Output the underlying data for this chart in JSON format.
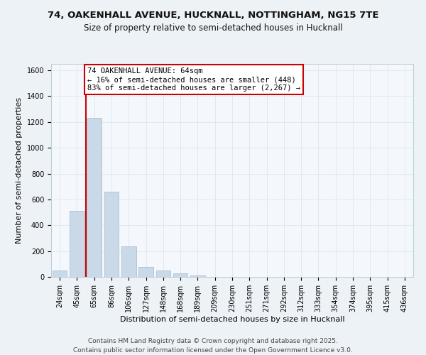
{
  "title_line1": "74, OAKENHALL AVENUE, HUCKNALL, NOTTINGHAM, NG15 7TE",
  "title_line2": "Size of property relative to semi-detached houses in Hucknall",
  "xlabel": "Distribution of semi-detached houses by size in Hucknall",
  "ylabel": "Number of semi-detached properties",
  "categories": [
    "24sqm",
    "45sqm",
    "65sqm",
    "86sqm",
    "106sqm",
    "127sqm",
    "148sqm",
    "168sqm",
    "189sqm",
    "209sqm",
    "230sqm",
    "251sqm",
    "271sqm",
    "292sqm",
    "312sqm",
    "333sqm",
    "354sqm",
    "374sqm",
    "395sqm",
    "415sqm",
    "436sqm"
  ],
  "values": [
    50,
    510,
    1230,
    660,
    235,
    75,
    50,
    30,
    12,
    0,
    0,
    0,
    0,
    0,
    0,
    0,
    0,
    0,
    0,
    0,
    0
  ],
  "bar_color": "#c9d9e8",
  "bar_edge_color": "#a0b8cc",
  "bar_linewidth": 0.5,
  "annotation_line1": "74 OAKENHALL AVENUE: 64sqm",
  "annotation_line2": "← 16% of semi-detached houses are smaller (448)",
  "annotation_line3": "83% of semi-detached houses are larger (2,267) →",
  "annotation_box_color": "#ffffff",
  "annotation_box_edge": "#cc0000",
  "vline_color": "#cc0000",
  "vline_x": 1.5,
  "ylim": [
    0,
    1650
  ],
  "yticks": [
    0,
    200,
    400,
    600,
    800,
    1000,
    1200,
    1400,
    1600
  ],
  "grid_color": "#dde6ef",
  "background_color": "#edf2f7",
  "plot_background": "#f4f8fc",
  "footer_line1": "Contains HM Land Registry data © Crown copyright and database right 2025.",
  "footer_line2": "Contains public sector information licensed under the Open Government Licence v3.0.",
  "title_fontsize": 9.5,
  "subtitle_fontsize": 8.5,
  "axis_label_fontsize": 8,
  "tick_fontsize": 7,
  "annotation_fontsize": 7.5,
  "footer_fontsize": 6.5
}
